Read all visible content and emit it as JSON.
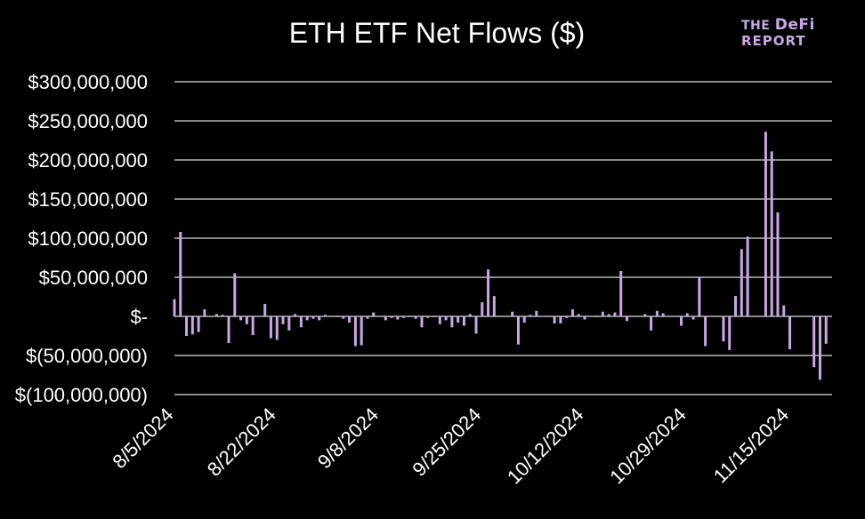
{
  "logo": {
    "line1_small": "THE",
    "line1_big": "DeFi",
    "line2": "REPORT"
  },
  "chart_data": {
    "type": "bar",
    "title": "ETH ETF Net Flows ($)",
    "xlabel": "",
    "ylabel": "",
    "ylim": [
      -100000000,
      300000000
    ],
    "yticks": [
      {
        "value": 300000000,
        "label": "$300,000,000"
      },
      {
        "value": 250000000,
        "label": "$250,000,000"
      },
      {
        "value": 200000000,
        "label": "$200,000,000"
      },
      {
        "value": 150000000,
        "label": "$150,000,000"
      },
      {
        "value": 100000000,
        "label": "$100,000,000"
      },
      {
        "value": 50000000,
        "label": "$50,000,000"
      },
      {
        "value": 0,
        "label": "$-"
      },
      {
        "value": -50000000,
        "label": "$(50,000,000)"
      },
      {
        "value": -100000000,
        "label": "$(100,000,000)"
      }
    ],
    "grid": true,
    "bar_color": "#c9a7e3",
    "gridline_color": "#d9d9d9",
    "x_start": "2024-08-05",
    "x_end": "2024-11-22",
    "xticks": [
      "8/5/2024",
      "8/22/2024",
      "9/8/2024",
      "9/25/2024",
      "10/12/2024",
      "10/29/2024",
      "11/15/2024"
    ],
    "points": [
      {
        "x": "2024-08-05",
        "y": 22000000
      },
      {
        "x": "2024-08-06",
        "y": 108000000
      },
      {
        "x": "2024-08-07",
        "y": -25000000
      },
      {
        "x": "2024-08-08",
        "y": -23000000
      },
      {
        "x": "2024-08-09",
        "y": -20000000
      },
      {
        "x": "2024-08-10",
        "y": 9000000
      },
      {
        "x": "2024-08-12",
        "y": 3000000
      },
      {
        "x": "2024-08-13",
        "y": 2000000
      },
      {
        "x": "2024-08-14",
        "y": -34000000
      },
      {
        "x": "2024-08-15",
        "y": 55000000
      },
      {
        "x": "2024-08-16",
        "y": -5000000
      },
      {
        "x": "2024-08-17",
        "y": -10000000
      },
      {
        "x": "2024-08-18",
        "y": -24000000
      },
      {
        "x": "2024-08-20",
        "y": 16000000
      },
      {
        "x": "2024-08-21",
        "y": -28000000
      },
      {
        "x": "2024-08-22",
        "y": -30000000
      },
      {
        "x": "2024-08-23",
        "y": -10000000
      },
      {
        "x": "2024-08-24",
        "y": -18000000
      },
      {
        "x": "2024-08-25",
        "y": 3000000
      },
      {
        "x": "2024-08-26",
        "y": -14000000
      },
      {
        "x": "2024-08-27",
        "y": -5000000
      },
      {
        "x": "2024-08-28",
        "y": -3000000
      },
      {
        "x": "2024-08-29",
        "y": -5000000
      },
      {
        "x": "2024-08-30",
        "y": 2000000
      },
      {
        "x": "2024-09-01",
        "y": 1000000
      },
      {
        "x": "2024-09-02",
        "y": -3000000
      },
      {
        "x": "2024-09-03",
        "y": -8000000
      },
      {
        "x": "2024-09-04",
        "y": -38000000
      },
      {
        "x": "2024-09-05",
        "y": -37000000
      },
      {
        "x": "2024-09-06",
        "y": -3000000
      },
      {
        "x": "2024-09-07",
        "y": 5000000
      },
      {
        "x": "2024-09-09",
        "y": -5000000
      },
      {
        "x": "2024-09-10",
        "y": -2000000
      },
      {
        "x": "2024-09-11",
        "y": -4000000
      },
      {
        "x": "2024-09-12",
        "y": -2000000
      },
      {
        "x": "2024-09-13",
        "y": 1000000
      },
      {
        "x": "2024-09-14",
        "y": -3000000
      },
      {
        "x": "2024-09-15",
        "y": -14000000
      },
      {
        "x": "2024-09-16",
        "y": -2000000
      },
      {
        "x": "2024-09-17",
        "y": -1000000
      },
      {
        "x": "2024-09-18",
        "y": -10000000
      },
      {
        "x": "2024-09-19",
        "y": -5000000
      },
      {
        "x": "2024-09-20",
        "y": -14000000
      },
      {
        "x": "2024-09-21",
        "y": -8000000
      },
      {
        "x": "2024-09-22",
        "y": -12000000
      },
      {
        "x": "2024-09-23",
        "y": 3000000
      },
      {
        "x": "2024-09-24",
        "y": -22000000
      },
      {
        "x": "2024-09-25",
        "y": 18000000
      },
      {
        "x": "2024-09-26",
        "y": 60000000
      },
      {
        "x": "2024-09-27",
        "y": 26000000
      },
      {
        "x": "2024-09-30",
        "y": 6000000
      },
      {
        "x": "2024-10-01",
        "y": -36000000
      },
      {
        "x": "2024-10-02",
        "y": -8000000
      },
      {
        "x": "2024-10-03",
        "y": 2000000
      },
      {
        "x": "2024-10-04",
        "y": 7000000
      },
      {
        "x": "2024-10-07",
        "y": -9000000
      },
      {
        "x": "2024-10-08",
        "y": -9000000
      },
      {
        "x": "2024-10-09",
        "y": -2000000
      },
      {
        "x": "2024-10-10",
        "y": 9000000
      },
      {
        "x": "2024-10-11",
        "y": 3000000
      },
      {
        "x": "2024-10-12",
        "y": -4000000
      },
      {
        "x": "2024-10-14",
        "y": -1000000
      },
      {
        "x": "2024-10-15",
        "y": 6000000
      },
      {
        "x": "2024-10-16",
        "y": 3000000
      },
      {
        "x": "2024-10-17",
        "y": 5000000
      },
      {
        "x": "2024-10-18",
        "y": 58000000
      },
      {
        "x": "2024-10-19",
        "y": -6000000
      },
      {
        "x": "2024-10-22",
        "y": 3000000
      },
      {
        "x": "2024-10-23",
        "y": -18000000
      },
      {
        "x": "2024-10-24",
        "y": 7000000
      },
      {
        "x": "2024-10-25",
        "y": 4000000
      },
      {
        "x": "2024-10-28",
        "y": -12000000
      },
      {
        "x": "2024-10-29",
        "y": 4000000
      },
      {
        "x": "2024-10-30",
        "y": -4000000
      },
      {
        "x": "2024-10-31",
        "y": 50000000
      },
      {
        "x": "2024-11-01",
        "y": -38000000
      },
      {
        "x": "2024-11-04",
        "y": -32000000
      },
      {
        "x": "2024-11-05",
        "y": -43000000
      },
      {
        "x": "2024-11-06",
        "y": 26000000
      },
      {
        "x": "2024-11-07",
        "y": 86000000
      },
      {
        "x": "2024-11-08",
        "y": 102000000
      },
      {
        "x": "2024-11-11",
        "y": 236000000
      },
      {
        "x": "2024-11-12",
        "y": 211000000
      },
      {
        "x": "2024-11-13",
        "y": 133000000
      },
      {
        "x": "2024-11-14",
        "y": 14000000
      },
      {
        "x": "2024-11-15",
        "y": -42000000
      },
      {
        "x": "2024-11-19",
        "y": -65000000
      },
      {
        "x": "2024-11-20",
        "y": -81000000
      },
      {
        "x": "2024-11-21",
        "y": -35000000
      }
    ]
  }
}
